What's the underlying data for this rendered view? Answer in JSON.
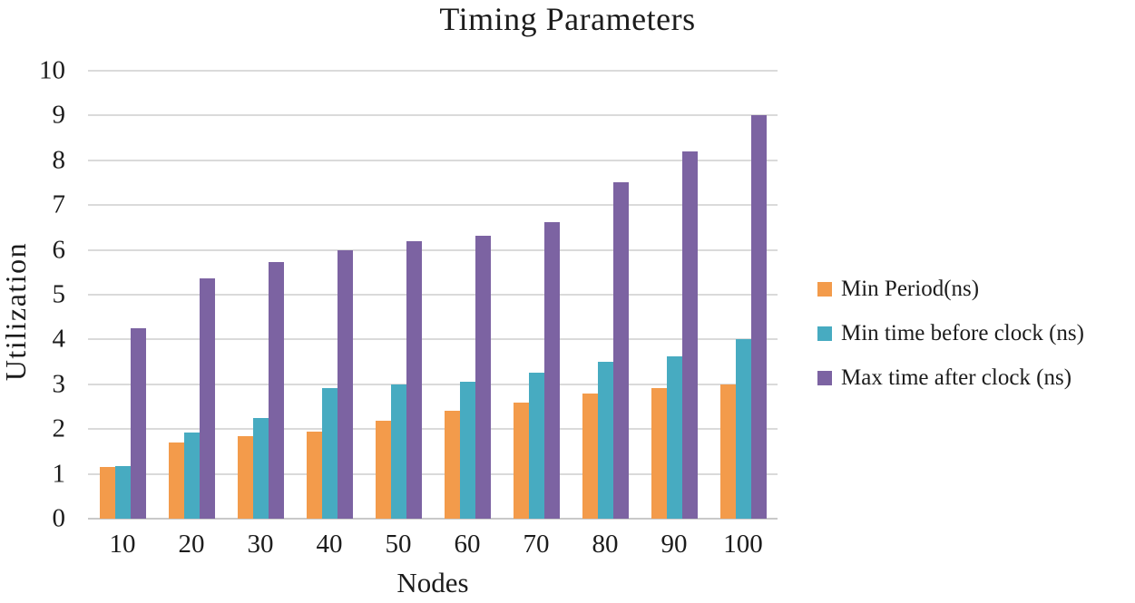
{
  "chart_data": {
    "type": "bar",
    "title": "Timing Parameters",
    "xlabel": "Nodes",
    "ylabel": "Utilization",
    "categories": [
      "10",
      "20",
      "30",
      "40",
      "50",
      "60",
      "70",
      "80",
      "90",
      "100"
    ],
    "y_ticks": [
      0,
      1,
      2,
      3,
      4,
      5,
      6,
      7,
      8,
      9,
      10
    ],
    "ylim": [
      0,
      10
    ],
    "grid": true,
    "legend_position": "right",
    "series": [
      {
        "name": "Min Period(ns)",
        "color": "#F39B4B",
        "values": [
          1.15,
          1.7,
          1.85,
          1.95,
          2.18,
          2.4,
          2.6,
          2.8,
          2.92,
          3.0
        ]
      },
      {
        "name": "Min time before clock (ns)",
        "color": "#47ABC1",
        "values": [
          1.17,
          1.92,
          2.25,
          2.92,
          3.0,
          3.05,
          3.25,
          3.5,
          3.62,
          4.0
        ]
      },
      {
        "name": "Max time after clock (ns)",
        "color": "#7C63A2",
        "values": [
          4.25,
          5.37,
          5.72,
          6.0,
          6.2,
          6.32,
          6.62,
          7.52,
          8.2,
          9.0
        ]
      }
    ],
    "colors": {
      "gridline": "#DADADA",
      "axis_line": "#C9C9C9",
      "text": "#1C1C1C"
    }
  }
}
